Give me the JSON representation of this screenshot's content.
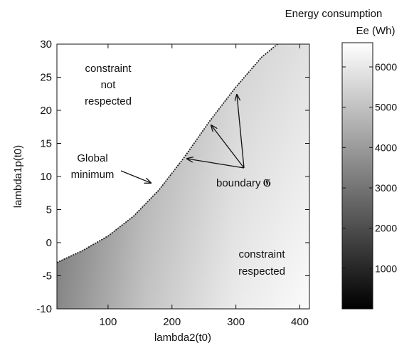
{
  "chart_data": {
    "type": "heatmap",
    "xlabel": "lambda2(t0)",
    "ylabel": "lambda1p(t0)",
    "xlim": [
      20,
      415
    ],
    "ylim": [
      -10,
      30
    ],
    "x_ticks": [
      100,
      200,
      300,
      400
    ],
    "y_ticks": [
      -10,
      -5,
      0,
      5,
      10,
      15,
      20,
      25,
      30
    ],
    "colorbar": {
      "title_line1": "Energy consumption",
      "title_line2": "Ee (Wh)",
      "range": [
        0,
        6600
      ],
      "ticks": [
        1000,
        2000,
        3000,
        4000,
        5000,
        6000
      ],
      "colormap": "gray"
    },
    "boundary": {
      "x": [
        20,
        60,
        100,
        140,
        180,
        220,
        260,
        300,
        340,
        365
      ],
      "y": [
        -3.0,
        -1.2,
        1.0,
        4.0,
        8.0,
        13.0,
        18.5,
        23.5,
        28.0,
        30.0
      ]
    },
    "global_minimum": {
      "x": 165,
      "y": 9
    },
    "annotations": {
      "infeasible_line1": "constraint",
      "infeasible_line2": "not",
      "infeasible_line3": "respected",
      "feasible_line1": "constraint",
      "feasible_line2": "respected",
      "global_min_line1": "Global",
      "global_min_line2": "minimum",
      "boundary_label": "boundary",
      "boundary_symbol": "𝔊"
    }
  }
}
